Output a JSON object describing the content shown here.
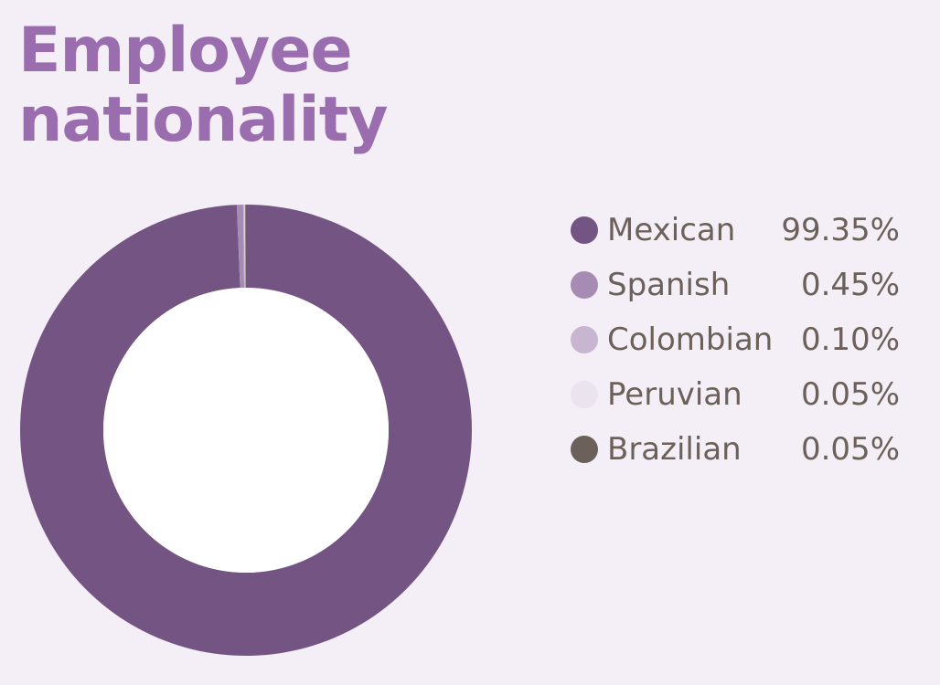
{
  "title_line1": "Employee",
  "title_line2": "nationality",
  "chart_data": {
    "type": "pie",
    "donut": true,
    "title": "Employee nationality",
    "legend_position": "right",
    "categories": [
      "Mexican",
      "Spanish",
      "Colombian",
      "Peruvian",
      "Brazilian"
    ],
    "values": [
      99.35,
      0.45,
      0.1,
      0.05,
      0.05
    ],
    "value_labels": [
      "99.35%",
      "0.45%",
      "0.10%",
      "0.05%",
      "0.05%"
    ],
    "colors": [
      "#745483",
      "#a68cb3",
      "#c8b6d0",
      "#ebe4ee",
      "#6b605a"
    ]
  }
}
